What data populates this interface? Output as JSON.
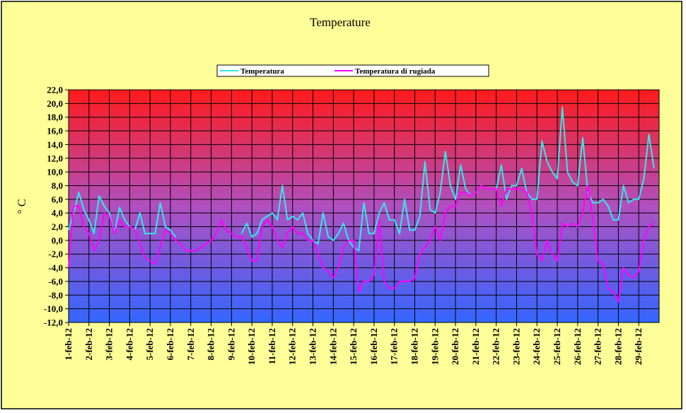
{
  "chart_data": {
    "type": "line",
    "title": "Temperature",
    "y_label": "° C",
    "x": [
      1,
      1.25,
      1.5,
      1.75,
      2,
      2.25,
      2.5,
      2.75,
      3,
      3.25,
      3.5,
      3.75,
      4,
      4.25,
      4.5,
      4.75,
      5,
      5.25,
      5.5,
      5.75,
      6,
      6.25,
      6.5,
      6.75,
      7,
      7.25,
      7.5,
      7.75,
      8,
      8.25,
      8.5,
      8.75,
      9,
      9.25,
      9.5,
      9.75,
      10,
      10.25,
      10.5,
      10.75,
      11,
      11.25,
      11.5,
      11.75,
      12,
      12.25,
      12.5,
      12.75,
      13,
      13.25,
      13.5,
      13.75,
      14,
      14.25,
      14.5,
      14.75,
      15,
      15.25,
      15.5,
      15.75,
      16,
      16.25,
      16.5,
      16.75,
      17,
      17.25,
      17.5,
      17.75,
      18,
      18.25,
      18.5,
      18.75,
      19,
      19.25,
      19.5,
      19.75,
      20,
      20.25,
      20.5,
      20.75,
      21,
      21.25,
      21.5,
      21.75,
      22,
      22.25,
      22.5,
      22.75,
      23,
      23.25,
      23.5,
      23.75,
      24,
      24.25,
      24.5,
      24.75,
      25,
      25.25,
      25.5,
      25.75,
      26,
      26.25,
      26.5,
      26.75,
      27,
      27.25,
      27.5,
      27.75,
      28,
      28.25,
      28.5,
      28.75,
      29,
      29.25,
      29.5,
      29.75
    ],
    "series": [
      {
        "name": "Temperatura",
        "color": "#33e8e8",
        "values": [
          1.5,
          4,
          7,
          4.5,
          3,
          1,
          6.5,
          5,
          4,
          1,
          4.8,
          3,
          2,
          1.5,
          4,
          1,
          1,
          1,
          5.5,
          2,
          1.5,
          0.5,
          null,
          null,
          null,
          null,
          null,
          null,
          null,
          null,
          null,
          null,
          null,
          null,
          1,
          2.5,
          0.5,
          1,
          3,
          3.5,
          4,
          3,
          8,
          3,
          3.5,
          3,
          4,
          1,
          0,
          -0.5,
          4,
          0.5,
          0,
          1,
          2.5,
          0,
          -1,
          -1.5,
          5.5,
          1,
          1,
          4,
          5.5,
          3,
          3,
          1,
          6,
          1.5,
          1.5,
          3.5,
          11.5,
          4.5,
          4,
          7,
          13,
          8,
          6,
          11,
          7.5,
          6.5,
          7,
          8,
          7.5,
          7.5,
          7.5,
          11,
          6,
          8,
          8,
          10.5,
          7,
          6,
          6,
          14.5,
          11.5,
          10,
          9,
          19.5,
          10,
          8.5,
          8,
          15,
          7,
          5.5,
          5.5,
          6,
          5,
          3,
          3,
          8,
          5.5,
          6,
          6,
          9,
          15.5,
          10.5
        ]
      },
      {
        "name": "Temperatura di rugiada",
        "color": "#ff00ff",
        "values": [
          -4,
          5,
          5,
          2,
          1,
          -1.5,
          0,
          4,
          3.5,
          1,
          3,
          2,
          2,
          1.5,
          -0.5,
          -2.5,
          -3,
          -3.5,
          -1,
          1.5,
          1,
          0,
          -0.5,
          -1.5,
          -1.5,
          -1.5,
          -1,
          -0.5,
          0,
          1,
          3,
          1.5,
          1,
          0.5,
          0.5,
          -1,
          -3,
          -3,
          2,
          3,
          2,
          0,
          -1,
          1,
          2,
          1,
          1,
          0,
          0,
          -2,
          -4,
          -4.5,
          -5.5,
          -4,
          -1,
          0,
          0,
          -7.5,
          -6,
          -6,
          -5,
          3,
          -6,
          -7,
          -7,
          -6,
          -6,
          -6,
          -5.5,
          -2,
          -1,
          0,
          2,
          0,
          4,
          5,
          5,
          7,
          7,
          6.5,
          7,
          8,
          7.5,
          7.5,
          7.5,
          5,
          7.5,
          7.5,
          7.5,
          7.5,
          7,
          4,
          -2,
          -3,
          0,
          -2,
          -3,
          2.5,
          2,
          2.5,
          2,
          4,
          8,
          3,
          -3,
          -3.5,
          -7,
          -7.5,
          -9,
          -4,
          -5,
          -5.5,
          -4.5,
          0,
          2,
          2.5
        ]
      }
    ],
    "xlim": [
      1,
      30
    ],
    "xticks": [
      {
        "value": 1,
        "label": "1-feb-12"
      },
      {
        "value": 2,
        "label": "2-feb-12"
      },
      {
        "value": 3,
        "label": "3-feb-12"
      },
      {
        "value": 4,
        "label": "4-feb-12"
      },
      {
        "value": 5,
        "label": "5-feb-12"
      },
      {
        "value": 6,
        "label": "6-feb-12"
      },
      {
        "value": 7,
        "label": "7-feb-12"
      },
      {
        "value": 8,
        "label": "8-feb-12"
      },
      {
        "value": 9,
        "label": "9-feb-12"
      },
      {
        "value": 10,
        "label": "10-feb-12"
      },
      {
        "value": 11,
        "label": "11-feb-12"
      },
      {
        "value": 12,
        "label": "12-feb-12"
      },
      {
        "value": 13,
        "label": "13-feb-12"
      },
      {
        "value": 14,
        "label": "14-feb-12"
      },
      {
        "value": 15,
        "label": "15-feb-12"
      },
      {
        "value": 16,
        "label": "16-feb-12"
      },
      {
        "value": 17,
        "label": "17-feb-12"
      },
      {
        "value": 18,
        "label": "18-feb-12"
      },
      {
        "value": 19,
        "label": "19-feb-12"
      },
      {
        "value": 20,
        "label": "20-feb-12"
      },
      {
        "value": 21,
        "label": "21-feb-12"
      },
      {
        "value": 22,
        "label": "22-feb-12"
      },
      {
        "value": 23,
        "label": "23-feb-12"
      },
      {
        "value": 24,
        "label": "24-feb-12"
      },
      {
        "value": 25,
        "label": "25-feb-12"
      },
      {
        "value": 26,
        "label": "26-feb-12"
      },
      {
        "value": 27,
        "label": "27-feb-12"
      },
      {
        "value": 28,
        "label": "28-feb-12"
      },
      {
        "value": 29,
        "label": "29-feb-12"
      }
    ],
    "ylim": [
      -12,
      22
    ],
    "yticks": [
      {
        "value": -12,
        "label": "-12,0"
      },
      {
        "value": -10,
        "label": "-10,0"
      },
      {
        "value": -8,
        "label": "-8,0"
      },
      {
        "value": -6,
        "label": "-6,0"
      },
      {
        "value": -4,
        "label": "-4,0"
      },
      {
        "value": -2,
        "label": "-2,0"
      },
      {
        "value": 0,
        "label": "0,0"
      },
      {
        "value": 2,
        "label": "2,0"
      },
      {
        "value": 4,
        "label": "4,0"
      },
      {
        "value": 6,
        "label": "6,0"
      },
      {
        "value": 8,
        "label": "8,0"
      },
      {
        "value": 10,
        "label": "10,0"
      },
      {
        "value": 12,
        "label": "12,0"
      },
      {
        "value": 14,
        "label": "14,0"
      },
      {
        "value": 16,
        "label": "16,0"
      },
      {
        "value": 18,
        "label": "18,0"
      },
      {
        "value": 20,
        "label": "20,0"
      },
      {
        "value": 22,
        "label": "22,0"
      }
    ],
    "grid": true,
    "legend": "top"
  }
}
